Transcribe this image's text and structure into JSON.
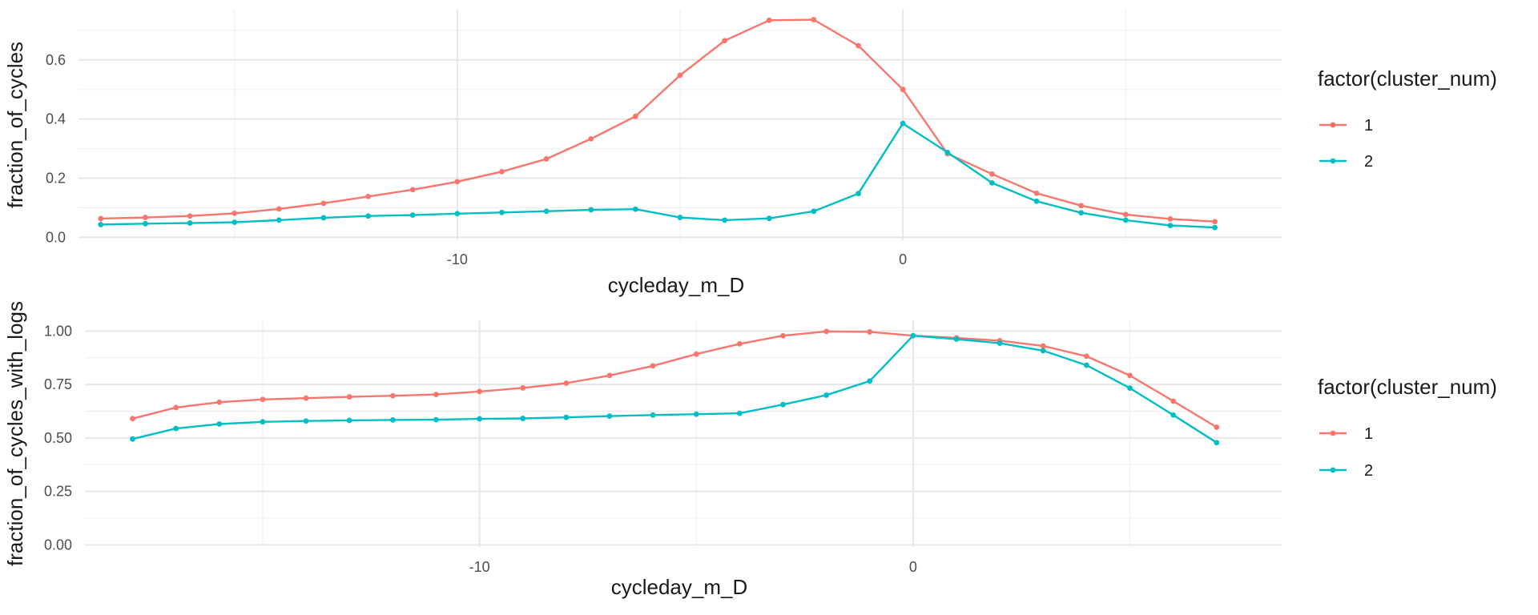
{
  "chart_data": [
    {
      "type": "line",
      "xlabel": "cycleday_m_D",
      "ylabel": "fraction_of_cycles",
      "xlim": [
        -18.5,
        8.5
      ],
      "ylim": [
        -0.01,
        0.77
      ],
      "x_ticks": [
        -10,
        0
      ],
      "x_tick_labels": [
        "-10",
        "0"
      ],
      "x_minor_ticks": [
        -15,
        -5,
        5
      ],
      "y_ticks": [
        0.0,
        0.2,
        0.4,
        0.6
      ],
      "y_tick_labels": [
        "0.0",
        "0.2",
        "0.4",
        "0.6"
      ],
      "y_minor_ticks": [
        0.1,
        0.3,
        0.5,
        0.7
      ],
      "grid": true,
      "legend": {
        "title": "factor(cluster_num)",
        "position": "right",
        "labels": [
          "1",
          "2"
        ]
      },
      "x": [
        -18,
        -17,
        -16,
        -15,
        -14,
        -13,
        -12,
        -11,
        -10,
        -9,
        -8,
        -7,
        -6,
        -5,
        -4,
        -3,
        -2,
        -1,
        0,
        1,
        2,
        3,
        4,
        5,
        6,
        7
      ],
      "series": [
        {
          "name": "1",
          "color": "#F8766D",
          "values": [
            0.063,
            0.067,
            0.072,
            0.081,
            0.096,
            0.115,
            0.138,
            0.161,
            0.188,
            0.222,
            0.265,
            0.333,
            0.409,
            0.548,
            0.665,
            0.734,
            0.736,
            0.648,
            0.5,
            0.283,
            0.214,
            0.149,
            0.107,
            0.077,
            0.062,
            0.053
          ]
        },
        {
          "name": "2",
          "color": "#00BFC4",
          "values": [
            0.043,
            0.046,
            0.048,
            0.051,
            0.058,
            0.066,
            0.072,
            0.075,
            0.08,
            0.084,
            0.088,
            0.093,
            0.095,
            0.067,
            0.058,
            0.064,
            0.088,
            0.148,
            0.385,
            0.287,
            0.184,
            0.122,
            0.083,
            0.058,
            0.04,
            0.033
          ]
        }
      ]
    },
    {
      "type": "line",
      "xlabel": "cycleday_m_D",
      "ylabel": "fraction_of_cycles_with_logs",
      "xlim": [
        -19.1,
        8.5
      ],
      "ylim": [
        -0.01,
        1.05
      ],
      "x_ticks": [
        -10,
        0
      ],
      "x_tick_labels": [
        "-10",
        "0"
      ],
      "x_minor_ticks": [
        -15,
        -5,
        5
      ],
      "y_ticks": [
        0.0,
        0.25,
        0.5,
        0.75,
        1.0
      ],
      "y_tick_labels": [
        "0.00",
        "0.25",
        "0.50",
        "0.75",
        "1.00"
      ],
      "y_minor_ticks": [
        0.125,
        0.375,
        0.625,
        0.875
      ],
      "grid": true,
      "legend": {
        "title": "factor(cluster_num)",
        "position": "right",
        "labels": [
          "1",
          "2"
        ]
      },
      "x": [
        -18,
        -17,
        -16,
        -15,
        -14,
        -13,
        -12,
        -11,
        -10,
        -9,
        -8,
        -7,
        -6,
        -5,
        -4,
        -3,
        -2,
        -1,
        0,
        1,
        2,
        3,
        4,
        5,
        6,
        7
      ],
      "series": [
        {
          "name": "1",
          "color": "#F8766D",
          "values": [
            0.59,
            0.642,
            0.667,
            0.68,
            0.686,
            0.692,
            0.697,
            0.703,
            0.717,
            0.734,
            0.756,
            0.792,
            0.837,
            0.892,
            0.94,
            0.978,
            0.998,
            0.996,
            0.978,
            0.968,
            0.955,
            0.93,
            0.882,
            0.792,
            0.672,
            0.55
          ]
        },
        {
          "name": "2",
          "color": "#00BFC4",
          "values": [
            0.495,
            0.544,
            0.565,
            0.575,
            0.579,
            0.582,
            0.584,
            0.585,
            0.589,
            0.591,
            0.596,
            0.602,
            0.607,
            0.611,
            0.615,
            0.656,
            0.7,
            0.766,
            0.978,
            0.962,
            0.943,
            0.908,
            0.84,
            0.733,
            0.607,
            0.478
          ]
        }
      ]
    }
  ]
}
